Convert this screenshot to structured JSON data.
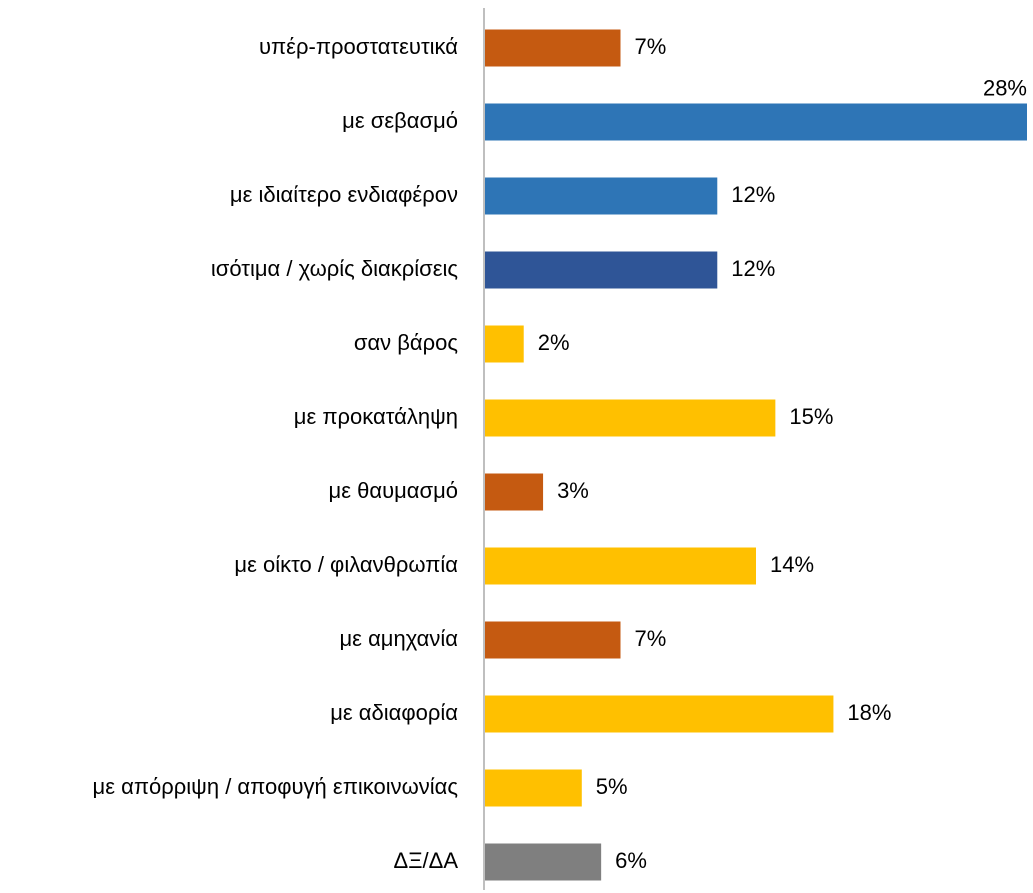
{
  "chart_data": {
    "type": "barh",
    "categories": [
      "υπέρ-προστατευτικά",
      "με σεβασμό",
      "με ιδιαίτερο ενδιαφέρον",
      "ισότιμα / χωρίς διακρίσεις",
      "σαν βάρος",
      "με προκατάληψη",
      "με θαυμασμό",
      "με οίκτο / φιλανθρωπία",
      "με αμηχανία",
      "με αδιαφορία",
      "με απόρριψη / αποφυγή επικοινωνίας",
      "ΔΞ/ΔΑ"
    ],
    "values": [
      7,
      28,
      12,
      12,
      2,
      15,
      3,
      14,
      7,
      18,
      5,
      6
    ],
    "value_labels": [
      "7%",
      "28%",
      "12%",
      "12%",
      "2%",
      "15%",
      "3%",
      "14%",
      "7%",
      "18%",
      "5%",
      "6%"
    ],
    "colors": [
      "#c55a11",
      "#2e75b6",
      "#2e75b6",
      "#2f5597",
      "#ffc000",
      "#ffc000",
      "#c55a11",
      "#ffc000",
      "#c55a11",
      "#ffc000",
      "#ffc000",
      "#7f7f7f"
    ],
    "xlim": [
      0,
      28
    ]
  }
}
